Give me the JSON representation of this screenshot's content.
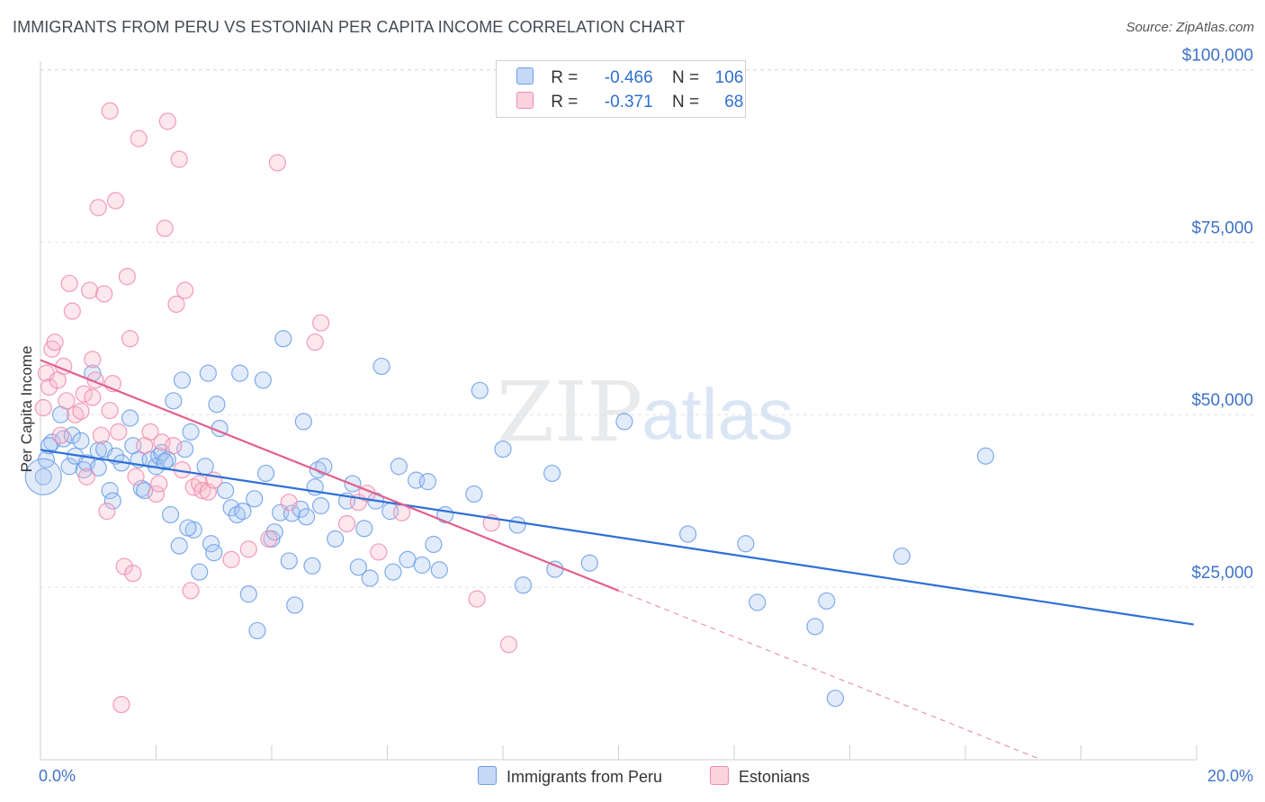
{
  "title": "IMMIGRANTS FROM PERU VS ESTONIAN PER CAPITA INCOME CORRELATION CHART",
  "source": "Source: ZipAtlas.com",
  "watermark": {
    "left": "ZIP",
    "right": "atlas"
  },
  "legend_top": [
    {
      "r_label": "R =",
      "r_value": "-0.466",
      "n_label": "N =",
      "n_value": "106",
      "color": "#6b9ee8"
    },
    {
      "r_label": "R =",
      "r_value": "-0.371",
      "n_label": "N =",
      "n_value": "68",
      "color": "#f08bab"
    }
  ],
  "legend_bottom": [
    {
      "label": "Immigrants from Peru",
      "color": "#6b9ee8"
    },
    {
      "label": "Estonians",
      "color": "#f08bab"
    }
  ],
  "chart_data": {
    "type": "scatter",
    "title": "IMMIGRANTS FROM PERU VS ESTONIAN PER CAPITA INCOME CORRELATION CHART",
    "xlabel": "",
    "ylabel": "Per Capita Income",
    "x_unit": "%",
    "xlim": [
      0,
      20
    ],
    "ylim": [
      0,
      102000
    ],
    "x_tick_labels": [
      "0.0%",
      "20.0%"
    ],
    "y_ticks": [
      25000,
      50000,
      75000,
      100000
    ],
    "y_tick_labels": [
      "$25,000",
      "$50,000",
      "$75,000",
      "$100,000"
    ],
    "grid": true,
    "legend_position": "top-center",
    "series": [
      {
        "name": "Immigrants from Peru",
        "color": "#6b9ee8",
        "line_color": "#2e6fd6",
        "R": -0.466,
        "N": 106,
        "trend": {
          "x": [
            0.0,
            19.95
          ],
          "y": [
            44900,
            19600
          ]
        },
        "points": [
          [
            0.05,
            41000
          ],
          [
            0.1,
            43500
          ],
          [
            0.2,
            46000
          ],
          [
            0.35,
            50000
          ],
          [
            0.4,
            46500
          ],
          [
            0.5,
            42500
          ],
          [
            0.55,
            47000
          ],
          [
            0.6,
            44000
          ],
          [
            0.75,
            42000
          ],
          [
            0.8,
            43000
          ],
          [
            0.9,
            56000
          ],
          [
            1.0,
            44800
          ],
          [
            1.1,
            45000
          ],
          [
            1.2,
            39000
          ],
          [
            1.25,
            37500
          ],
          [
            1.3,
            44000
          ],
          [
            1.4,
            43000
          ],
          [
            1.55,
            49500
          ],
          [
            1.6,
            45500
          ],
          [
            1.7,
            43500
          ],
          [
            1.75,
            39300
          ],
          [
            1.8,
            39000
          ],
          [
            1.9,
            43500
          ],
          [
            2.0,
            42500
          ],
          [
            2.05,
            44000
          ],
          [
            2.1,
            44500
          ],
          [
            2.2,
            43500
          ],
          [
            2.25,
            35500
          ],
          [
            2.3,
            52000
          ],
          [
            2.4,
            31000
          ],
          [
            2.45,
            55000
          ],
          [
            2.5,
            45000
          ],
          [
            2.6,
            47500
          ],
          [
            2.65,
            33300
          ],
          [
            2.75,
            27200
          ],
          [
            2.85,
            42500
          ],
          [
            2.9,
            56000
          ],
          [
            2.95,
            31300
          ],
          [
            3.05,
            51500
          ],
          [
            3.1,
            48000
          ],
          [
            3.2,
            39000
          ],
          [
            3.3,
            36500
          ],
          [
            3.4,
            35500
          ],
          [
            3.45,
            56000
          ],
          [
            3.5,
            36000
          ],
          [
            3.6,
            24000
          ],
          [
            3.7,
            37800
          ],
          [
            3.75,
            18700
          ],
          [
            3.85,
            55000
          ],
          [
            3.9,
            41500
          ],
          [
            4.0,
            32000
          ],
          [
            4.05,
            33000
          ],
          [
            4.15,
            35800
          ],
          [
            4.2,
            61000
          ],
          [
            4.3,
            28800
          ],
          [
            4.35,
            35700
          ],
          [
            4.4,
            22400
          ],
          [
            4.5,
            36300
          ],
          [
            4.55,
            49000
          ],
          [
            4.7,
            28100
          ],
          [
            4.75,
            39500
          ],
          [
            4.8,
            42000
          ],
          [
            4.85,
            36800
          ],
          [
            4.9,
            42500
          ],
          [
            5.1,
            32000
          ],
          [
            5.3,
            37500
          ],
          [
            5.4,
            40000
          ],
          [
            5.5,
            27900
          ],
          [
            5.7,
            26300
          ],
          [
            5.8,
            37500
          ],
          [
            5.9,
            57000
          ],
          [
            6.1,
            27200
          ],
          [
            6.2,
            42500
          ],
          [
            6.35,
            29000
          ],
          [
            6.5,
            40500
          ],
          [
            6.6,
            28200
          ],
          [
            6.7,
            40300
          ],
          [
            6.8,
            31200
          ],
          [
            6.9,
            27500
          ],
          [
            7.0,
            35500
          ],
          [
            7.5,
            38500
          ],
          [
            7.6,
            53500
          ],
          [
            8.0,
            45000
          ],
          [
            8.25,
            34000
          ],
          [
            8.35,
            25300
          ],
          [
            8.85,
            41500
          ],
          [
            8.9,
            27600
          ],
          [
            9.5,
            28500
          ],
          [
            10.1,
            49000
          ],
          [
            11.2,
            32700
          ],
          [
            12.2,
            31300
          ],
          [
            12.4,
            22800
          ],
          [
            13.4,
            19300
          ],
          [
            13.6,
            23000
          ],
          [
            13.75,
            8900
          ],
          [
            14.9,
            29500
          ],
          [
            16.35,
            44000
          ],
          [
            0.15,
            45500
          ],
          [
            0.7,
            46200
          ],
          [
            1.0,
            42300
          ],
          [
            2.15,
            43200
          ],
          [
            3.0,
            30000
          ],
          [
            4.6,
            35200
          ],
          [
            5.6,
            33500
          ],
          [
            6.05,
            36000
          ],
          [
            2.55,
            33600
          ]
        ]
      },
      {
        "name": "Estonians",
        "color": "#f08bab",
        "line_color": "#e2608c",
        "R": -0.371,
        "N": 68,
        "trend": {
          "x": [
            0.0,
            10.0
          ],
          "y": [
            57900,
            24500
          ]
        },
        "trend_extension": {
          "x": [
            10.0,
            20.0
          ],
          "y": [
            24500,
            -9000
          ]
        },
        "points": [
          [
            0.05,
            51000
          ],
          [
            0.1,
            56000
          ],
          [
            0.15,
            54000
          ],
          [
            0.2,
            59500
          ],
          [
            0.25,
            60500
          ],
          [
            0.3,
            55000
          ],
          [
            0.35,
            47000
          ],
          [
            0.4,
            57000
          ],
          [
            0.45,
            52000
          ],
          [
            0.5,
            69000
          ],
          [
            0.55,
            65000
          ],
          [
            0.6,
            50000
          ],
          [
            0.7,
            50500
          ],
          [
            0.75,
            53000
          ],
          [
            0.8,
            41000
          ],
          [
            0.85,
            68000
          ],
          [
            0.9,
            58000
          ],
          [
            0.95,
            55000
          ],
          [
            1.0,
            80000
          ],
          [
            1.05,
            47000
          ],
          [
            1.1,
            67500
          ],
          [
            1.15,
            36000
          ],
          [
            1.2,
            94000
          ],
          [
            1.25,
            54500
          ],
          [
            1.3,
            81000
          ],
          [
            1.35,
            47500
          ],
          [
            1.4,
            8000
          ],
          [
            1.45,
            28000
          ],
          [
            1.5,
            70000
          ],
          [
            1.55,
            61000
          ],
          [
            1.6,
            27000
          ],
          [
            1.65,
            41000
          ],
          [
            1.7,
            90000
          ],
          [
            1.8,
            45500
          ],
          [
            1.9,
            47500
          ],
          [
            2.0,
            38500
          ],
          [
            2.05,
            40000
          ],
          [
            2.1,
            46000
          ],
          [
            2.15,
            77000
          ],
          [
            2.2,
            92500
          ],
          [
            2.3,
            45500
          ],
          [
            2.35,
            66000
          ],
          [
            2.4,
            87000
          ],
          [
            2.45,
            42000
          ],
          [
            2.5,
            68000
          ],
          [
            2.6,
            24500
          ],
          [
            2.65,
            39500
          ],
          [
            2.75,
            40000
          ],
          [
            2.8,
            39000
          ],
          [
            2.9,
            38800
          ],
          [
            3.0,
            40500
          ],
          [
            3.3,
            29000
          ],
          [
            3.6,
            30500
          ],
          [
            3.95,
            32000
          ],
          [
            4.1,
            86500
          ],
          [
            4.3,
            37300
          ],
          [
            4.75,
            60500
          ],
          [
            4.85,
            63300
          ],
          [
            5.3,
            34200
          ],
          [
            5.5,
            37300
          ],
          [
            5.65,
            38600
          ],
          [
            5.85,
            30100
          ],
          [
            6.25,
            35800
          ],
          [
            7.55,
            23300
          ],
          [
            7.8,
            34300
          ],
          [
            8.1,
            16700
          ],
          [
            0.9,
            52500
          ],
          [
            1.2,
            50600
          ]
        ]
      }
    ]
  }
}
